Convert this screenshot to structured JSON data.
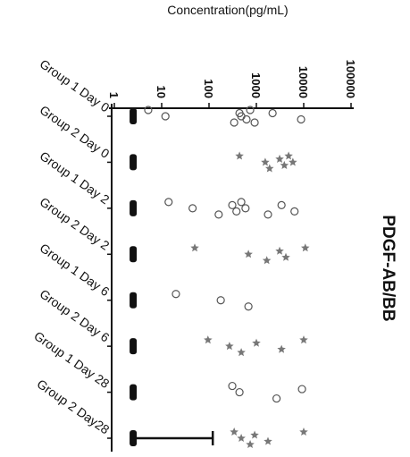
{
  "chart_data": {
    "type": "dot",
    "title": "PDGF-AB/BB",
    "x_label": "Concentration(pg/mL)",
    "log_x": true,
    "xlim": [
      1,
      100000
    ],
    "xticks": [
      1,
      10,
      100,
      1000,
      10000,
      100000
    ],
    "categories": [
      "Group 1 Day 0",
      "Group 2 Day 0",
      "Group 1 Day 2",
      "Group 2 Day 2",
      "Group 1 Day 6",
      "Group 2 Day 6",
      "Group 1 Day 28",
      "Group 2 Day28"
    ],
    "markers": [
      "circle",
      "star",
      "circle",
      "star",
      "circle",
      "star",
      "circle",
      "star"
    ],
    "marker_colors": [
      "#555555",
      "#777777",
      "#555555",
      "#777777",
      "#555555",
      "#777777",
      "#555555",
      "#777777"
    ],
    "lod_color": "#111111",
    "lod_values": [
      2.5,
      2.5,
      2.5,
      2.5,
      2.5,
      2.5,
      2.5,
      2.5
    ],
    "values": [
      [
        5.2,
        12,
        340,
        440,
        620,
        740,
        480,
        920,
        2200,
        8800
      ],
      [
        440,
        1540,
        1900,
        3100,
        3900,
        4800,
        5900
      ],
      [
        14,
        45,
        160,
        310,
        380,
        480,
        590,
        1760,
        3400,
        6400
      ],
      [
        50,
        680,
        1660,
        3100,
        4200,
        10800
      ],
      [
        20,
        177,
        680
      ],
      [
        95,
        270,
        480,
        1000,
        3400,
        10000
      ],
      [
        310,
        440,
        2670,
        9200
      ],
      [
        340,
        480,
        740,
        920,
        1760,
        10000
      ]
    ],
    "ranges": [
      null,
      null,
      null,
      null,
      null,
      null,
      null,
      [
        2.5,
        120
      ]
    ]
  }
}
